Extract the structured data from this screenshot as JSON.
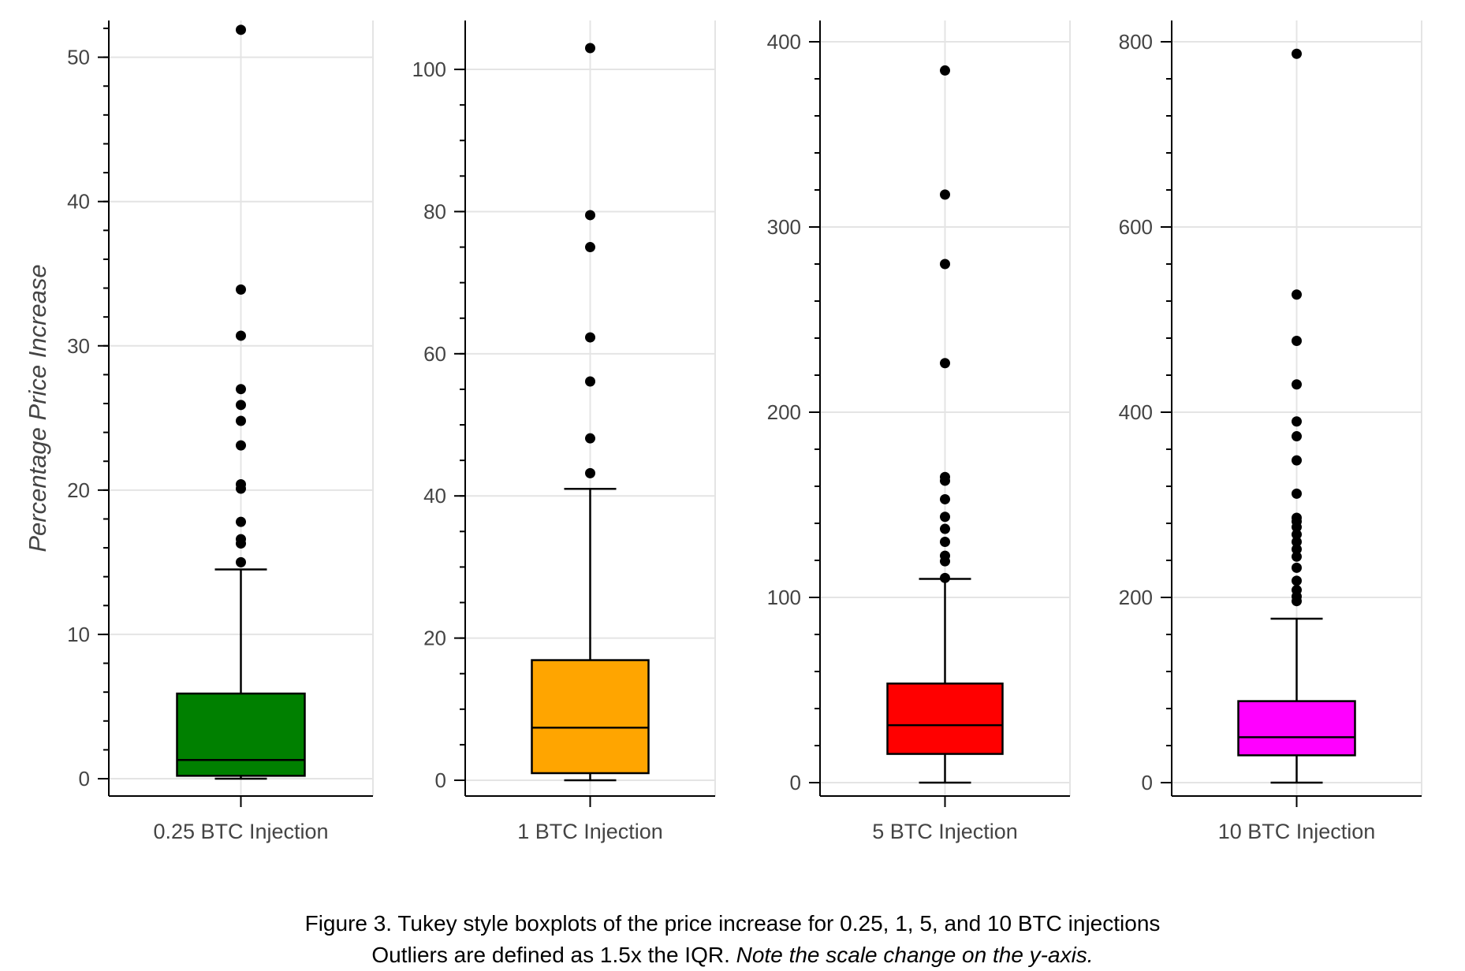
{
  "chart_data": {
    "type": "boxplot",
    "ylabel": "Percentage Price Increase",
    "grid": true,
    "panels": [
      {
        "category": "0.25 BTC Injection",
        "color": "#008000",
        "ylim": [
          0,
          52
        ],
        "ticks": [
          0,
          10,
          20,
          30,
          40,
          50
        ],
        "tick_labels": [
          "0",
          "10",
          "20",
          "30",
          "40",
          "50"
        ],
        "minor_step": 2,
        "whisker_low": 0,
        "q1": 0.2,
        "median": 1.3,
        "q3": 5.9,
        "whisker_high": 14.5,
        "outliers": [
          15.0,
          16.3,
          16.6,
          17.8,
          20.1,
          20.4,
          23.1,
          24.8,
          25.9,
          27.0,
          30.7,
          33.9,
          51.9
        ]
      },
      {
        "category": "1 BTC Injection",
        "color": "#FFA500",
        "ylim": [
          0,
          103
        ],
        "ticks": [
          0,
          20,
          40,
          60,
          80,
          100
        ],
        "tick_labels": [
          "0",
          "20",
          "40",
          "60",
          "80",
          "100"
        ],
        "minor_step": 5,
        "whisker_low": 0,
        "q1": 1.0,
        "median": 7.4,
        "q3": 16.9,
        "whisker_high": 41.0,
        "outliers": [
          43.2,
          48.1,
          56.1,
          62.3,
          75.0,
          79.5,
          103.0
        ]
      },
      {
        "category": "5 BTC Injection",
        "color": "#FF0000",
        "ylim": [
          0,
          400
        ],
        "ticks": [
          0,
          100,
          200,
          300,
          400
        ],
        "tick_labels": [
          "0",
          "100",
          "200",
          "300",
          "400"
        ],
        "minor_step": 20,
        "whisker_low": 0,
        "q1": 15.5,
        "median": 31.0,
        "q3": 53.5,
        "whisker_high": 110.0,
        "outliers": [
          110.5,
          119.5,
          122.5,
          130.0,
          137.0,
          143.5,
          153.0,
          163.0,
          165.0,
          226.5,
          280.0,
          317.5,
          384.5
        ]
      },
      {
        "category": "10 BTC Injection",
        "color": "#FF00FF",
        "ylim": [
          0,
          800
        ],
        "ticks": [
          0,
          200,
          400,
          600,
          800
        ],
        "tick_labels": [
          "0",
          "200",
          "400",
          "600",
          "800"
        ],
        "minor_step": 40,
        "whisker_low": 0,
        "q1": 29.5,
        "median": 49.0,
        "q3": 88.0,
        "whisker_high": 177.0,
        "outliers": [
          196,
          201,
          208,
          218,
          232,
          244,
          252,
          260,
          268,
          276,
          282,
          286,
          312,
          348,
          374,
          390,
          430,
          477,
          527,
          787
        ]
      }
    ]
  },
  "caption": {
    "line1": "Figure 3. Tukey style boxplots of the price increase for 0.25, 1, 5, and 10 BTC injections",
    "line2_plain": "Outliers are defined as 1.5x the IQR. ",
    "line2_italic": "Note the scale change on the y-axis."
  }
}
